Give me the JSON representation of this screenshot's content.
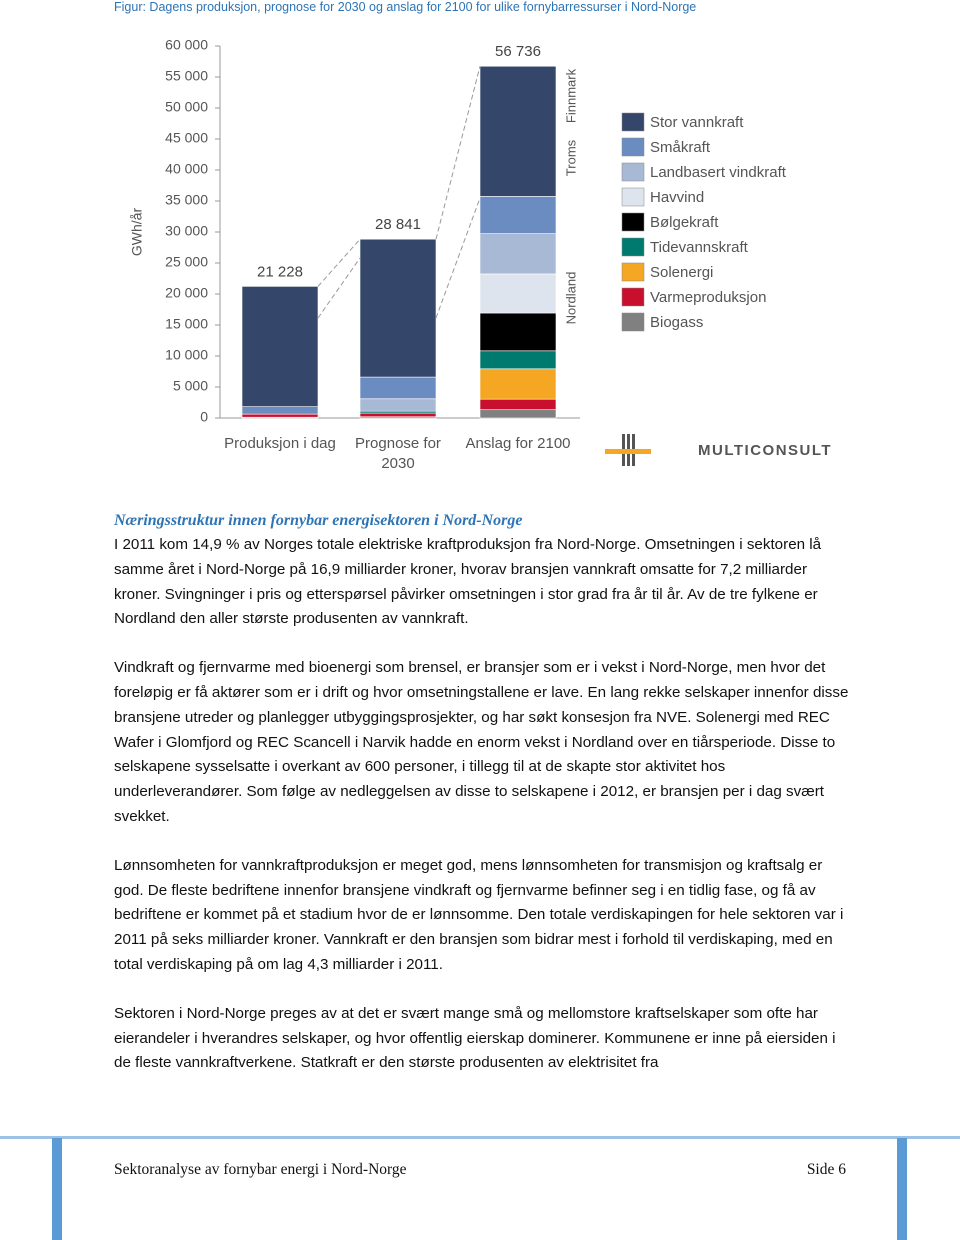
{
  "header": {
    "caption": "Figur: Dagens produksjon, prognose for 2030 og anslag for 2100 for ulike fornybarressurser i Nord-Norge"
  },
  "chart_data": {
    "type": "stacked_bar",
    "y_label": "GWh/år",
    "categories": [
      "Produksjon i dag",
      "Prognose for 2030",
      "Anslag for 2100"
    ],
    "totals": [
      21228,
      28841,
      56736
    ],
    "total_labels": [
      "21 228",
      "28 841",
      "56 736"
    ],
    "series": [
      {
        "name": "Stor vannkraft",
        "color": "#34476b",
        "values": [
          19400,
          22241,
          21000
        ]
      },
      {
        "name": "Småkraft",
        "color": "#6b8cc0",
        "values": [
          1200,
          3500,
          6000
        ]
      },
      {
        "name": "Landbasert vindkraft",
        "color": "#a8b9d6",
        "values": [
          0,
          2000,
          6500
        ]
      },
      {
        "name": "Havvind",
        "color": "#dde4ee",
        "values": [
          0,
          0,
          6300
        ]
      },
      {
        "name": "Bølgekraft",
        "color": "#000000",
        "values": [
          0,
          0,
          6100
        ]
      },
      {
        "name": "Tidevannskraft",
        "color": "#007a6e",
        "values": [
          0,
          300,
          2900
        ]
      },
      {
        "name": "Solenergi",
        "color": "#f5a623",
        "values": [
          0,
          0,
          4900
        ]
      },
      {
        "name": "Varmeproduksjon",
        "color": "#c8102e",
        "values": [
          500,
          600,
          1700
        ]
      },
      {
        "name": "Biogass",
        "color": "#808080",
        "values": [
          128,
          200,
          1336
        ]
      }
    ],
    "region_labels": [
      "Nordland",
      "Troms",
      "Finnmark"
    ],
    "ylim": [
      0,
      60000
    ],
    "yticks": [
      0,
      {
        "value": 5000,
        "label": "5 000"
      },
      {
        "value": 10000,
        "label": "10 000"
      },
      {
        "value": 15000,
        "label": "15 000"
      },
      {
        "value": 20000,
        "label": "20 000"
      },
      {
        "value": 25000,
        "label": "25 000"
      },
      {
        "value": 30000,
        "label": "30 000"
      },
      {
        "value": 35000,
        "label": "35 000"
      },
      {
        "value": 40000,
        "label": "40 000"
      },
      {
        "value": 45000,
        "label": "45 000"
      },
      {
        "value": 50000,
        "label": "50 000"
      },
      {
        "value": 55000,
        "label": "55 000"
      },
      {
        "value": 60000,
        "label": "60 000"
      }
    ],
    "legend": "right",
    "logo": "MULTICONSULT"
  },
  "body": {
    "heading": "Næringsstruktur innen fornybar energisektoren i Nord-Norge",
    "paragraphs": [
      "I 2011 kom 14,9 % av Norges totale elektriske kraftproduksjon fra Nord-Norge. Omsetningen i sektoren lå samme året i Nord-Norge på 16,9 milliarder kroner, hvorav bransjen vannkraft omsatte for 7,2 milliarder kroner. Svingninger i pris og etterspørsel påvirker omsetningen i stor grad fra år til år. Av de tre fylkene er Nordland den aller største produsenten av vannkraft.",
      "Vindkraft og fjernvarme med bioenergi som brensel, er bransjer som er i vekst i Nord-Norge, men hvor det foreløpig er få aktører som er i drift og hvor omsetningstallene er lave. En lang rekke selskaper innenfor disse bransjene utreder og planlegger utbyggingsprosjekter, og har søkt konsesjon fra NVE. Solenergi med REC Wafer i Glomfjord og REC Scancell i Narvik hadde en enorm vekst i Nordland over en tiårsperiode. Disse to selskapene sysselsatte i overkant av 600 personer, i tillegg til at de skapte stor aktivitet hos underleverandører. Som følge av nedleggelsen av disse to selskapene i 2012, er bransjen per i dag svært svekket.",
      "Lønnsomheten for vannkraftproduksjon er meget god, mens lønnsomheten for transmisjon og kraftsalg er god. De fleste bedriftene innenfor bransjene vindkraft og fjernvarme befinner seg i en tidlig fase, og få av bedriftene er kommet på et stadium hvor de er lønnsomme.  Den totale verdiskapingen for hele sektoren var i 2011 på seks milliarder kroner. Vannkraft er den bransjen som bidrar mest i forhold til verdiskaping, med en total verdiskaping på om lag 4,3 milliarder i 2011.",
      "Sektoren i Nord-Norge preges av at det er svært mange små og mellomstore kraftselskaper som ofte har eierandeler i hverandres selskaper, og hvor offentlig eierskap dominerer. Kommunene er inne på eiersiden i de fleste vannkraftverkene. Statkraft er den største produsenten av elektrisitet fra"
    ]
  },
  "footer": {
    "title": "Sektoranalyse av fornybar energi i Nord-Norge",
    "page": "Side 6"
  }
}
